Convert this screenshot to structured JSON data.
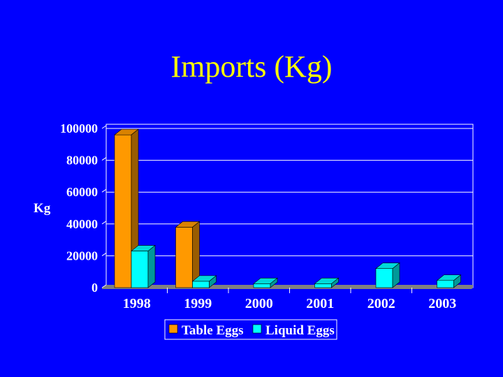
{
  "slide": {
    "title": "Imports (Kg)"
  },
  "colors": {
    "background": "#0000FF",
    "title": "#FFFF00",
    "text": "#FFFFFF",
    "gridline": "#FFFFFF",
    "floor": "#808080"
  },
  "chart_data": {
    "type": "bar",
    "title": "",
    "xlabel": "",
    "ylabel": "Kg",
    "categories": [
      "1998",
      "1999",
      "2000",
      "2001",
      "2002",
      "2003"
    ],
    "series": [
      {
        "name": "Table Eggs",
        "color": "#FF9900",
        "values": [
          96000,
          38000,
          0,
          0,
          0,
          0
        ]
      },
      {
        "name": "Liquid Eggs",
        "color": "#00FFFF",
        "values": [
          23000,
          4000,
          2500,
          2500,
          12000,
          4500
        ]
      }
    ],
    "ylim": [
      0,
      100000
    ],
    "yticks": [
      "0",
      "20000",
      "40000",
      "60000",
      "80000",
      "100000"
    ],
    "grid": true,
    "legend": "bottom"
  }
}
